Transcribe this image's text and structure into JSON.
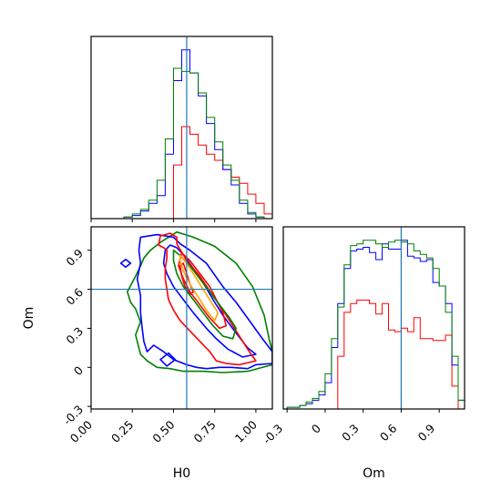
{
  "chart_data": {
    "type": "corner",
    "parameters": [
      "H0",
      "Om"
    ],
    "truth": {
      "H0": 0.58,
      "Om": 0.6
    },
    "series_colors": [
      "#ff0000",
      "#0000ff",
      "#008000"
    ],
    "panels": [
      {
        "id": "h0-hist",
        "type": "histogram",
        "x_range": [
          0.0,
          1.1
        ],
        "ticks": [
          0.0,
          0.25,
          0.5,
          0.75,
          1.0
        ],
        "bin_edges": [
          0.0,
          0.05,
          0.1,
          0.15,
          0.2,
          0.25,
          0.3,
          0.35,
          0.4,
          0.45,
          0.5,
          0.55,
          0.6,
          0.65,
          0.7,
          0.75,
          0.8,
          0.85,
          0.9,
          0.95,
          1.0,
          1.05,
          1.1
        ],
        "series": [
          {
            "color": "#ff0000",
            "counts": [
              0,
              0,
              0,
              0,
              0,
              0,
              0,
              0,
              0,
              0,
              35,
              60,
              55,
              48,
              42,
              38,
              32,
              27,
              23,
              16,
              10,
              3
            ]
          },
          {
            "color": "#0000ff",
            "counts": [
              0,
              0,
              0,
              0,
              1,
              2,
              5,
              10,
              15,
              42,
              90,
              110,
              95,
              80,
              62,
              45,
              32,
              22,
              10,
              3,
              1,
              0
            ]
          },
          {
            "color": "#008000",
            "counts": [
              0,
              0,
              0,
              0,
              1,
              3,
              6,
              12,
              25,
              52,
              98,
              96,
              95,
              82,
              66,
              50,
              35,
              25,
              12,
              4,
              1,
              0
            ]
          }
        ]
      },
      {
        "id": "om-hist",
        "type": "histogram",
        "x_range": [
          -0.33,
          1.1
        ],
        "ticks": [
          -0.3,
          0.0,
          0.3,
          0.6,
          0.9
        ],
        "bin_edges": [
          -0.33,
          -0.3,
          -0.25,
          -0.2,
          -0.15,
          -0.1,
          -0.05,
          0.0,
          0.05,
          0.1,
          0.15,
          0.2,
          0.25,
          0.3,
          0.35,
          0.4,
          0.45,
          0.5,
          0.55,
          0.6,
          0.65,
          0.7,
          0.75,
          0.8,
          0.85,
          0.9,
          0.95,
          1.0,
          1.05,
          1.1
        ],
        "series": [
          {
            "color": "#ff0000",
            "counts": [
              0,
              0,
              0,
              0,
              0,
              0,
              0,
              0,
              0,
              30,
              55,
              60,
              62,
              62,
              60,
              54,
              60,
              45,
              44,
              46,
              44,
              52,
              40,
              40,
              39,
              39,
              42,
              13,
              0
            ]
          },
          {
            "color": "#0000ff",
            "counts": [
              0,
              1,
              1,
              2,
              3,
              5,
              8,
              15,
              35,
              60,
              80,
              90,
              91,
              92,
              89,
              85,
              94,
              91,
              91,
              96,
              87,
              86,
              84,
              85,
              72,
              70,
              60,
              25,
              5
            ]
          },
          {
            "color": "#008000",
            "counts": [
              0,
              1,
              1,
              2,
              4,
              6,
              10,
              20,
              40,
              58,
              82,
              93,
              94,
              96,
              96,
              94,
              92,
              95,
              96,
              95,
              94,
              90,
              88,
              86,
              80,
              70,
              55,
              30,
              5
            ]
          }
        ]
      },
      {
        "id": "h0-om-contour",
        "type": "contour",
        "x_range": [
          0.0,
          1.1
        ],
        "y_range": [
          -0.32,
          1.08
        ],
        "x_ticks": [
          0.0,
          0.25,
          0.5,
          0.75,
          1.0
        ],
        "y_ticks": [
          -0.3,
          0.0,
          0.3,
          0.6,
          0.9
        ],
        "contours": [
          {
            "color": "#008000",
            "points": [
              [
                0.52,
                1.04
              ],
              [
                0.62,
                1.0
              ],
              [
                0.75,
                0.93
              ],
              [
                0.88,
                0.8
              ],
              [
                0.98,
                0.62
              ],
              [
                1.05,
                0.4
              ],
              [
                1.08,
                0.22
              ],
              [
                1.1,
                0.12
              ],
              [
                1.1,
                0.02
              ],
              [
                0.95,
                -0.03
              ],
              [
                0.8,
                -0.04
              ],
              [
                0.68,
                -0.03
              ],
              [
                0.56,
                -0.03
              ],
              [
                0.48,
                -0.01
              ],
              [
                0.4,
                0.0
              ],
              [
                0.34,
                0.05
              ],
              [
                0.3,
                0.1
              ],
              [
                0.27,
                0.25
              ],
              [
                0.3,
                0.35
              ],
              [
                0.27,
                0.45
              ],
              [
                0.24,
                0.5
              ],
              [
                0.22,
                0.58
              ],
              [
                0.27,
                0.7
              ],
              [
                0.3,
                0.78
              ],
              [
                0.32,
                0.84
              ],
              [
                0.36,
                0.9
              ],
              [
                0.42,
                0.96
              ],
              [
                0.52,
                1.04
              ]
            ]
          },
          {
            "color": "#0000ff",
            "points": [
              [
                0.3,
                1.0
              ],
              [
                0.4,
                1.02
              ],
              [
                0.5,
                1.0
              ],
              [
                0.54,
                0.95
              ],
              [
                0.6,
                0.9
              ],
              [
                0.7,
                0.8
              ],
              [
                0.8,
                0.62
              ],
              [
                0.88,
                0.5
              ],
              [
                0.96,
                0.36
              ],
              [
                1.04,
                0.22
              ],
              [
                1.1,
                0.12
              ],
              [
                1.1,
                0.03
              ],
              [
                1.0,
                0.02
              ],
              [
                0.95,
                -0.01
              ],
              [
                0.85,
                0.0
              ],
              [
                0.78,
                0.0
              ],
              [
                0.7,
                -0.01
              ],
              [
                0.64,
                0.0
              ],
              [
                0.58,
                0.02
              ],
              [
                0.5,
                0.06
              ],
              [
                0.44,
                0.12
              ],
              [
                0.38,
                0.17
              ],
              [
                0.34,
                0.12
              ],
              [
                0.32,
                0.2
              ],
              [
                0.31,
                0.3
              ],
              [
                0.3,
                0.42
              ],
              [
                0.3,
                0.55
              ],
              [
                0.28,
                0.68
              ],
              [
                0.3,
                0.8
              ],
              [
                0.29,
                0.9
              ],
              [
                0.3,
                1.0
              ]
            ]
          },
          {
            "color": "#0000ff",
            "points": [
              [
                0.48,
                0.94
              ],
              [
                0.52,
                0.92
              ],
              [
                0.57,
                0.85
              ],
              [
                0.62,
                0.76
              ],
              [
                0.68,
                0.65
              ],
              [
                0.74,
                0.52
              ],
              [
                0.8,
                0.4
              ],
              [
                0.87,
                0.28
              ],
              [
                0.95,
                0.15
              ],
              [
                1.0,
                0.1
              ],
              [
                0.92,
                0.08
              ],
              [
                0.83,
                0.14
              ],
              [
                0.76,
                0.22
              ],
              [
                0.7,
                0.3
              ],
              [
                0.62,
                0.42
              ],
              [
                0.56,
                0.52
              ],
              [
                0.5,
                0.62
              ],
              [
                0.46,
                0.72
              ],
              [
                0.44,
                0.8
              ],
              [
                0.45,
                0.9
              ],
              [
                0.48,
                0.94
              ]
            ]
          },
          {
            "color": "#0000ff",
            "points": [
              [
                0.46,
                0.01
              ],
              [
                0.51,
                0.06
              ],
              [
                0.47,
                0.11
              ],
              [
                0.42,
                0.06
              ],
              [
                0.46,
                0.01
              ]
            ]
          },
          {
            "color": "#0000ff",
            "points": [
              [
                0.18,
                0.8
              ],
              [
                0.21,
                0.77
              ],
              [
                0.24,
                0.8
              ],
              [
                0.21,
                0.83
              ],
              [
                0.18,
                0.8
              ]
            ]
          },
          {
            "color": "#ff0000",
            "points": [
              [
                0.42,
                1.01
              ],
              [
                0.48,
                1.03
              ],
              [
                0.52,
                1.0
              ],
              [
                0.52,
                0.95
              ],
              [
                0.58,
                0.82
              ],
              [
                0.66,
                0.7
              ],
              [
                0.74,
                0.55
              ],
              [
                0.82,
                0.4
              ],
              [
                0.88,
                0.28
              ],
              [
                0.96,
                0.12
              ],
              [
                1.0,
                0.05
              ],
              [
                0.9,
                0.02
              ],
              [
                0.82,
                0.03
              ],
              [
                0.76,
                0.05
              ],
              [
                0.72,
                0.12
              ],
              [
                0.66,
                0.2
              ],
              [
                0.6,
                0.28
              ],
              [
                0.54,
                0.36
              ],
              [
                0.5,
                0.44
              ],
              [
                0.47,
                0.52
              ],
              [
                0.46,
                0.6
              ],
              [
                0.45,
                0.68
              ],
              [
                0.45,
                0.76
              ],
              [
                0.46,
                0.84
              ],
              [
                0.46,
                0.9
              ],
              [
                0.44,
                0.92
              ],
              [
                0.41,
                0.94
              ],
              [
                0.42,
                1.01
              ]
            ]
          },
          {
            "color": "#ff0000",
            "points": [
              [
                0.55,
                0.88
              ],
              [
                0.6,
                0.82
              ],
              [
                0.66,
                0.72
              ],
              [
                0.72,
                0.62
              ],
              [
                0.76,
                0.52
              ],
              [
                0.8,
                0.42
              ],
              [
                0.82,
                0.32
              ],
              [
                0.78,
                0.3
              ],
              [
                0.72,
                0.38
              ],
              [
                0.66,
                0.48
              ],
              [
                0.6,
                0.58
              ],
              [
                0.56,
                0.68
              ],
              [
                0.53,
                0.78
              ],
              [
                0.55,
                0.88
              ]
            ]
          },
          {
            "color": "#ff0000",
            "points": [
              [
                0.56,
                0.8
              ],
              [
                0.58,
                0.72
              ],
              [
                0.6,
                0.64
              ],
              [
                0.62,
                0.58
              ],
              [
                0.6,
                0.56
              ],
              [
                0.57,
                0.62
              ],
              [
                0.55,
                0.7
              ],
              [
                0.54,
                0.78
              ],
              [
                0.56,
                0.8
              ]
            ]
          },
          {
            "color": "#008000",
            "points": [
              [
                0.5,
                0.9
              ],
              [
                0.54,
                0.86
              ],
              [
                0.6,
                0.78
              ],
              [
                0.66,
                0.68
              ],
              [
                0.72,
                0.58
              ],
              [
                0.78,
                0.48
              ],
              [
                0.84,
                0.38
              ],
              [
                0.88,
                0.3
              ],
              [
                0.86,
                0.22
              ],
              [
                0.8,
                0.24
              ],
              [
                0.74,
                0.32
              ],
              [
                0.68,
                0.42
              ],
              [
                0.62,
                0.52
              ],
              [
                0.56,
                0.62
              ],
              [
                0.52,
                0.72
              ],
              [
                0.5,
                0.82
              ],
              [
                0.5,
                0.9
              ]
            ]
          },
          {
            "color": "#ffa500",
            "points": [
              [
                0.54,
                0.86
              ],
              [
                0.58,
                0.8
              ],
              [
                0.63,
                0.7
              ],
              [
                0.68,
                0.6
              ],
              [
                0.73,
                0.5
              ],
              [
                0.77,
                0.42
              ],
              [
                0.75,
                0.36
              ],
              [
                0.7,
                0.44
              ],
              [
                0.65,
                0.54
              ],
              [
                0.6,
                0.64
              ],
              [
                0.56,
                0.74
              ],
              [
                0.54,
                0.82
              ],
              [
                0.54,
                0.86
              ]
            ]
          }
        ]
      }
    ],
    "xlabels": [
      "H0",
      "Om"
    ],
    "ylabel": "Om"
  }
}
